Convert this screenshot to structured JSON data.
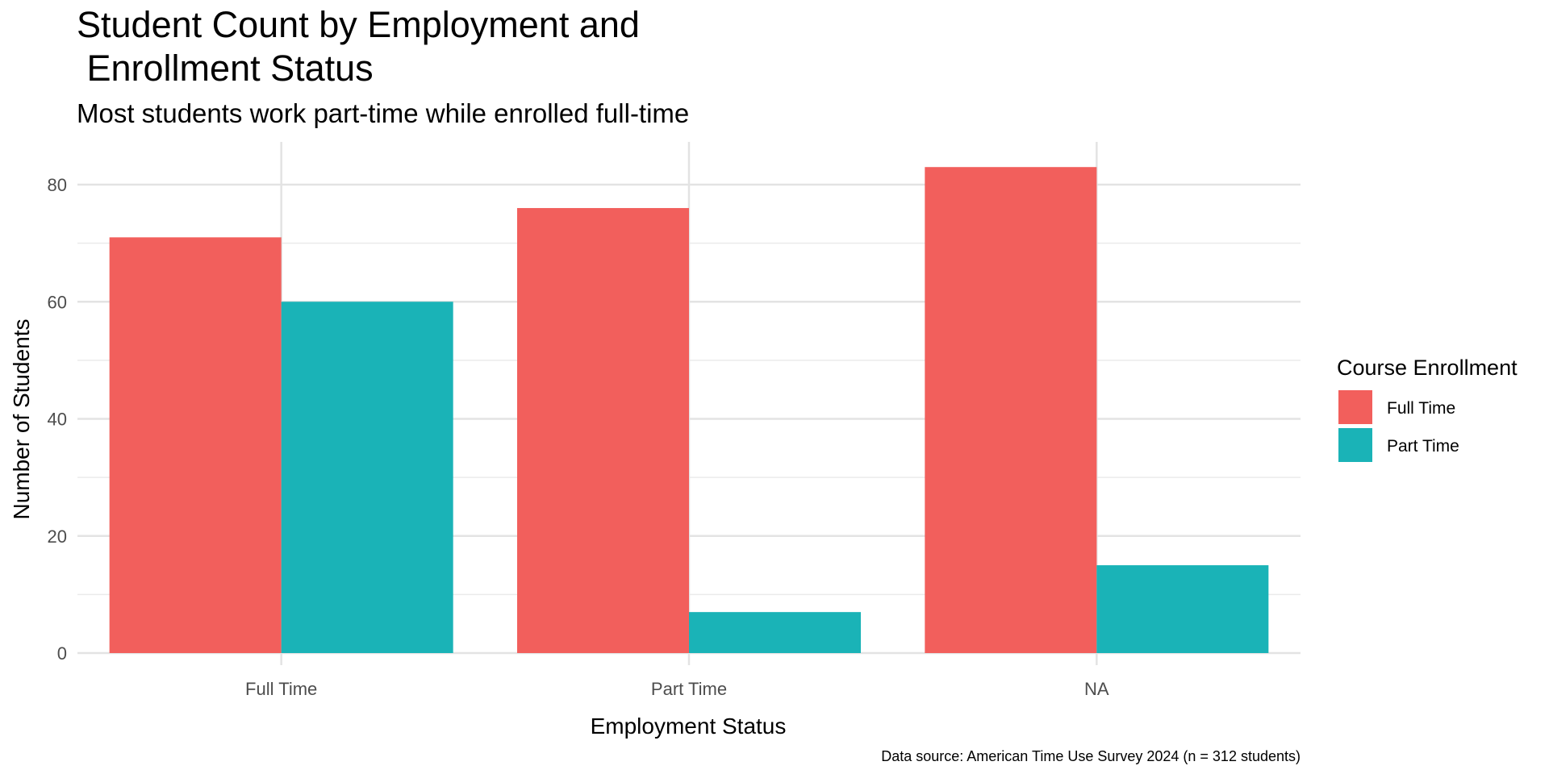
{
  "chart_data": {
    "type": "bar",
    "title": "Student Count by Employment and\n Enrollment Status",
    "title_lines": [
      "Student Count by Employment and",
      " Enrollment Status"
    ],
    "subtitle": "Most students work part-time while enrolled full-time",
    "xlabel": "Employment Status",
    "ylabel": "Number of Students",
    "caption": "Data source: American Time Use Survey 2024 (n = 312 students)",
    "categories": [
      "Full Time",
      "Part Time",
      "NA"
    ],
    "legend": {
      "title": "Course Enrollment",
      "position": "right"
    },
    "series": [
      {
        "name": "Full Time",
        "color": "#F25F5C",
        "values": [
          71,
          76,
          83
        ]
      },
      {
        "name": "Part Time",
        "color": "#1AB3B7",
        "values": [
          60,
          7,
          15
        ]
      }
    ],
    "ylim": [
      0,
      88
    ],
    "yticks": [
      0,
      20,
      40,
      60,
      80
    ],
    "grid": true
  }
}
